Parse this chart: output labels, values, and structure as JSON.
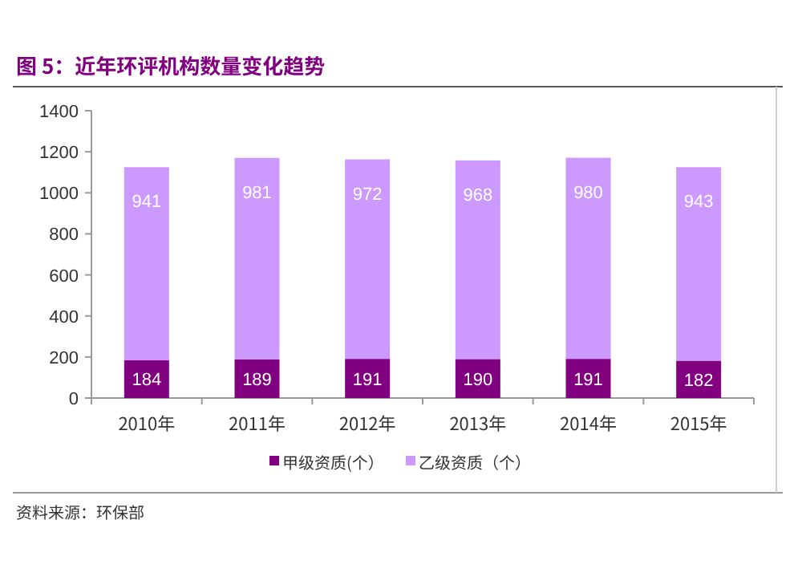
{
  "chart_data": {
    "type": "bar",
    "title": "图 5：近年环评机构数量变化趋势",
    "categories": [
      "2010年",
      "2011年",
      "2012年",
      "2013年",
      "2014年",
      "2015年"
    ],
    "stacked": true,
    "series": [
      {
        "name": "甲级资质(个）",
        "color": "#800080",
        "values": [
          184,
          189,
          191,
          190,
          191,
          182
        ]
      },
      {
        "name": "乙级资质（个）",
        "color": "#cc99ff",
        "values": [
          941,
          981,
          972,
          968,
          980,
          943
        ]
      }
    ],
    "data_labels": true,
    "ylim": [
      0,
      1400
    ],
    "yticks": [
      0,
      200,
      400,
      600,
      800,
      1000,
      1200,
      1400
    ],
    "grid": false,
    "legend": "bottom",
    "annotations": [
      "资料来源：环保部"
    ]
  }
}
